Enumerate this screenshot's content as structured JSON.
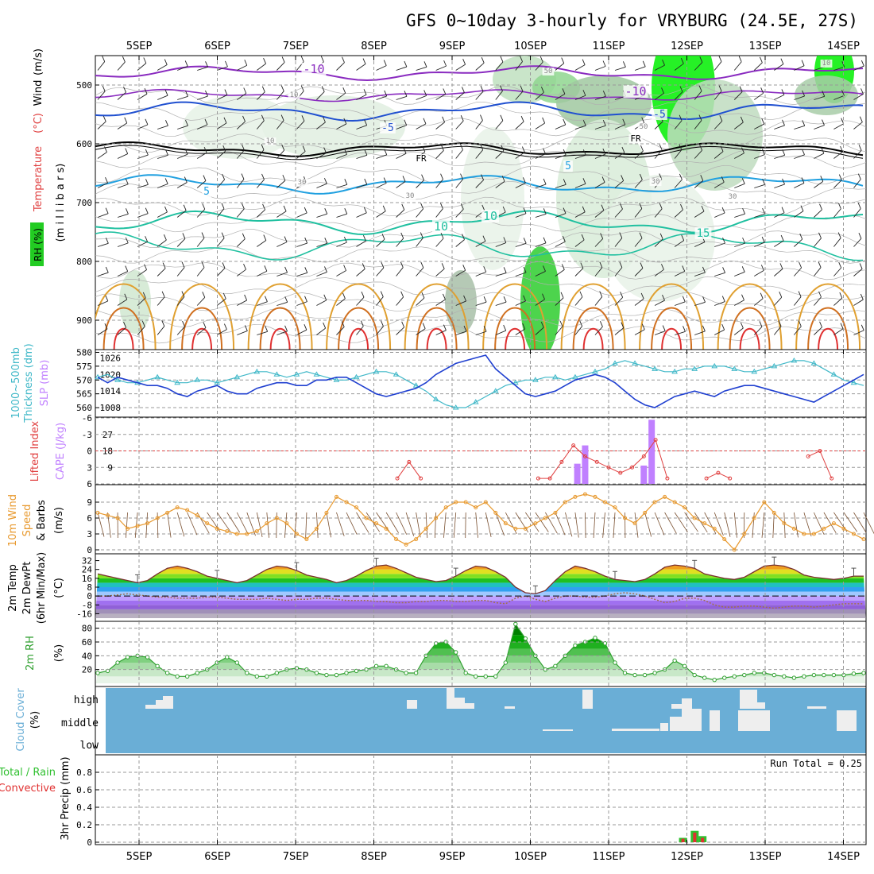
{
  "title": "GFS 0~10day 3-hourly for VRYBURG (24.5E, 27S)",
  "colors": {
    "temp_purple": "#8a2bc0",
    "temp_blue": "#2050d0",
    "temp_lightblue": "#20a0e0",
    "temp_teal": "#20c0a0",
    "temp_orange": "#e0a030",
    "temp_red": "#e03030",
    "rh_green": "#00ee00",
    "cloud_bg": "#6aaed6",
    "thickness": "#40b8c8",
    "slp": "#2040d0",
    "li": "#e04040",
    "cape": "#c080ff",
    "wind_speed": "#e89a30",
    "rh2m": "#30a030",
    "precip_total": "#30c030",
    "precip_conv": "#e03030"
  },
  "chart_data": [
    {
      "type": "line",
      "panel": "upper-air",
      "x": [
        "5SEP",
        "6SEP",
        "7SEP",
        "8SEP",
        "9SEP",
        "10SEP",
        "11SEP",
        "12SEP",
        "13SEP",
        "14SEP"
      ],
      "ylabel_parts": [
        "RH (%)",
        "Temperature",
        "(°C)",
        "Wind",
        "(m/s)",
        "(m i l l i b a r s)"
      ],
      "yticks": [
        500,
        600,
        700,
        800,
        900
      ],
      "contour_labels": [
        "-10",
        "-10",
        "-5",
        "-5",
        "FR",
        "FR",
        "5",
        "5",
        "10",
        "10",
        "15",
        "50",
        "30",
        "30",
        "10",
        "10",
        "50",
        "30",
        "30",
        "10"
      ]
    },
    {
      "type": "line",
      "panel": "thickness-slp",
      "ylabel_left": [
        "1000~500mb",
        "Thickness (dm)"
      ],
      "ylabel_right": "SLP (mb)",
      "yticks_left": [
        560,
        565,
        570,
        575,
        580
      ],
      "yticks_right": [
        1008,
        1014,
        1020,
        1026
      ],
      "series": [
        {
          "name": "Thickness",
          "axis": "left",
          "values": [
            571,
            572,
            570,
            569,
            569,
            570,
            571,
            570,
            569,
            569,
            570,
            570,
            569,
            570,
            571,
            572,
            573,
            573,
            572,
            571,
            572,
            573,
            572,
            571,
            570,
            570,
            571,
            572,
            573,
            573,
            572,
            570,
            568,
            566,
            563,
            561,
            560,
            560,
            562,
            564,
            566,
            568,
            569,
            570,
            570,
            571,
            571,
            570,
            571,
            572,
            573,
            574,
            576,
            577,
            576,
            575,
            574,
            573,
            573,
            574,
            574,
            575,
            575,
            575,
            574,
            573,
            573,
            574,
            575,
            576,
            577,
            577,
            576,
            574,
            572,
            570,
            569,
            568
          ]
        },
        {
          "name": "SLP",
          "axis": "right",
          "values": [
            1019,
            1017,
            1019,
            1018,
            1017,
            1016,
            1016,
            1015,
            1013,
            1012,
            1014,
            1015,
            1016,
            1014,
            1013,
            1013,
            1015,
            1016,
            1017,
            1017,
            1016,
            1016,
            1018,
            1018,
            1019,
            1019,
            1017,
            1015,
            1013,
            1012,
            1013,
            1014,
            1015,
            1017,
            1020,
            1022,
            1024,
            1025,
            1026,
            1027,
            1022,
            1019,
            1016,
            1013,
            1012,
            1013,
            1014,
            1016,
            1018,
            1019,
            1020,
            1019,
            1017,
            1014,
            1011,
            1009,
            1008,
            1010,
            1012,
            1013,
            1014,
            1013,
            1012,
            1014,
            1015,
            1016,
            1016,
            1015,
            1014,
            1013,
            1012,
            1011,
            1010,
            1012,
            1014,
            1016,
            1018,
            1020
          ]
        }
      ]
    },
    {
      "type": "bar",
      "panel": "li-cape",
      "ylabel_left": "Lifted Index",
      "ylabel_right": "CAPE (J/kg)",
      "yticks_left": [
        "-6",
        "-3",
        "0",
        "3",
        "6"
      ],
      "yticks_right": [
        9,
        18,
        27
      ],
      "li_segments": [
        {
          "x": [
            8.3,
            8.45,
            8.6
          ],
          "values": [
            5,
            2,
            5
          ]
        },
        {
          "x": [
            10.1,
            10.25,
            10.4,
            10.55,
            10.7,
            10.85,
            11.0,
            11.15,
            11.3,
            11.45,
            11.6,
            11.75
          ],
          "values": [
            5,
            5,
            2,
            -1,
            1,
            2,
            3,
            4,
            3,
            1,
            -2,
            5
          ]
        },
        {
          "x": [
            12.25,
            12.4,
            12.55
          ],
          "values": [
            5,
            4,
            5
          ]
        },
        {
          "x": [
            13.55,
            13.7,
            13.85
          ],
          "values": [
            1,
            0,
            5
          ]
        }
      ],
      "cape_bars": [
        {
          "x": 10.6,
          "value": 11
        },
        {
          "x": 10.7,
          "value": 21
        },
        {
          "x": 11.45,
          "value": 10
        },
        {
          "x": 11.55,
          "value": 35
        }
      ]
    },
    {
      "type": "line",
      "panel": "10m-wind",
      "ylabel_parts": [
        "10m Wind",
        "Speed",
        "& Barbs",
        "(m/s)"
      ],
      "yticks": [
        0,
        3,
        6,
        9
      ],
      "values": [
        7,
        6.5,
        6,
        4,
        4.5,
        5,
        6,
        7,
        8,
        7.5,
        6.5,
        5,
        4,
        3.5,
        3,
        3,
        3.5,
        5,
        6,
        5,
        3,
        2,
        4,
        7,
        10,
        9,
        8,
        6,
        5,
        4,
        2,
        1,
        2,
        4,
        6,
        8,
        9,
        9,
        8,
        9,
        7,
        5,
        4,
        4,
        5,
        6,
        7,
        9,
        10,
        10.5,
        10,
        9,
        8,
        6,
        5,
        7,
        9,
        10,
        9,
        8,
        6,
        5,
        4,
        2,
        0,
        3,
        6,
        9,
        7,
        5,
        4,
        3,
        3,
        4,
        5,
        4,
        3,
        2
      ]
    },
    {
      "type": "area",
      "panel": "2m-temp",
      "ylabel_parts": [
        "2m Temp",
        "2m DewPt",
        "(6hr Min/Max)",
        "(°C)"
      ],
      "yticks": [
        -16,
        -8,
        0,
        8,
        16,
        24,
        32
      ],
      "temp": [
        20,
        18,
        16,
        14,
        12,
        14,
        20,
        25,
        27,
        25,
        22,
        18,
        16,
        14,
        12,
        14,
        19,
        24,
        27,
        26,
        23,
        19,
        17,
        15,
        12,
        14,
        18,
        23,
        27,
        28,
        25,
        21,
        17,
        15,
        13,
        14,
        18,
        23,
        27,
        26,
        22,
        17,
        8,
        3,
        2,
        5,
        14,
        22,
        27,
        25,
        22,
        18,
        15,
        14,
        13,
        15,
        20,
        26,
        28,
        27,
        25,
        20,
        18,
        16,
        15,
        17,
        22,
        27,
        28,
        27,
        24,
        19,
        17,
        16,
        15,
        16,
        18,
        18
      ],
      "dewpt": [
        0,
        0,
        1,
        2,
        1,
        0,
        -1,
        -1,
        -2,
        -2,
        -2,
        -1,
        -1,
        -2,
        -3,
        -3,
        -3,
        -2,
        -3,
        -4,
        -3,
        -3,
        -2,
        -2,
        -3,
        -4,
        -4,
        -4,
        -5,
        -5,
        -6,
        -6,
        -5,
        -5,
        -4,
        -4,
        -5,
        -5,
        -4,
        -4,
        -6,
        -7,
        -2,
        0,
        -3,
        -5,
        -2,
        0,
        0,
        -1,
        -1,
        0,
        2,
        3,
        2,
        0,
        -3,
        -6,
        -5,
        -2,
        -2,
        -4,
        -8,
        -10,
        -10,
        -9,
        -9,
        -10,
        -11,
        -10,
        -9,
        -9,
        -10,
        -9,
        -8,
        -7,
        -7,
        -7
      ]
    },
    {
      "type": "area",
      "panel": "2m-rh",
      "ylabel_parts": [
        "2m RH",
        "(%)"
      ],
      "yticks": [
        20,
        40,
        60,
        80
      ],
      "values": [
        15,
        18,
        30,
        38,
        40,
        38,
        25,
        15,
        10,
        10,
        15,
        20,
        30,
        38,
        30,
        15,
        10,
        10,
        15,
        20,
        22,
        20,
        15,
        12,
        12,
        15,
        18,
        20,
        25,
        25,
        20,
        15,
        15,
        40,
        58,
        60,
        45,
        15,
        10,
        10,
        10,
        30,
        86,
        65,
        40,
        20,
        25,
        40,
        55,
        60,
        66,
        58,
        30,
        15,
        12,
        12,
        15,
        20,
        33,
        25,
        12,
        8,
        5,
        8,
        10,
        12,
        15,
        15,
        12,
        10,
        8,
        10,
        12,
        12,
        12,
        12,
        14,
        15
      ]
    },
    {
      "type": "heatmap",
      "panel": "cloud-cover",
      "ylabel_parts": [
        "Cloud Cover",
        "(%)"
      ],
      "levels": [
        "high",
        "middle",
        "low"
      ]
    },
    {
      "type": "bar",
      "panel": "precip",
      "ylabel_parts": [
        "3hr Precip (mm)",
        "Total / Rain",
        "Convective"
      ],
      "yticks": [
        0,
        0.2,
        0.4,
        0.6,
        0.8
      ],
      "run_total": "Run Total = 0.25",
      "bars": [
        {
          "x": 11.95,
          "total": 0.05,
          "conv": 0.04
        },
        {
          "x": 12.1,
          "total": 0.13,
          "conv": 0.11
        },
        {
          "x": 12.2,
          "total": 0.07,
          "conv": 0.05
        }
      ]
    }
  ]
}
